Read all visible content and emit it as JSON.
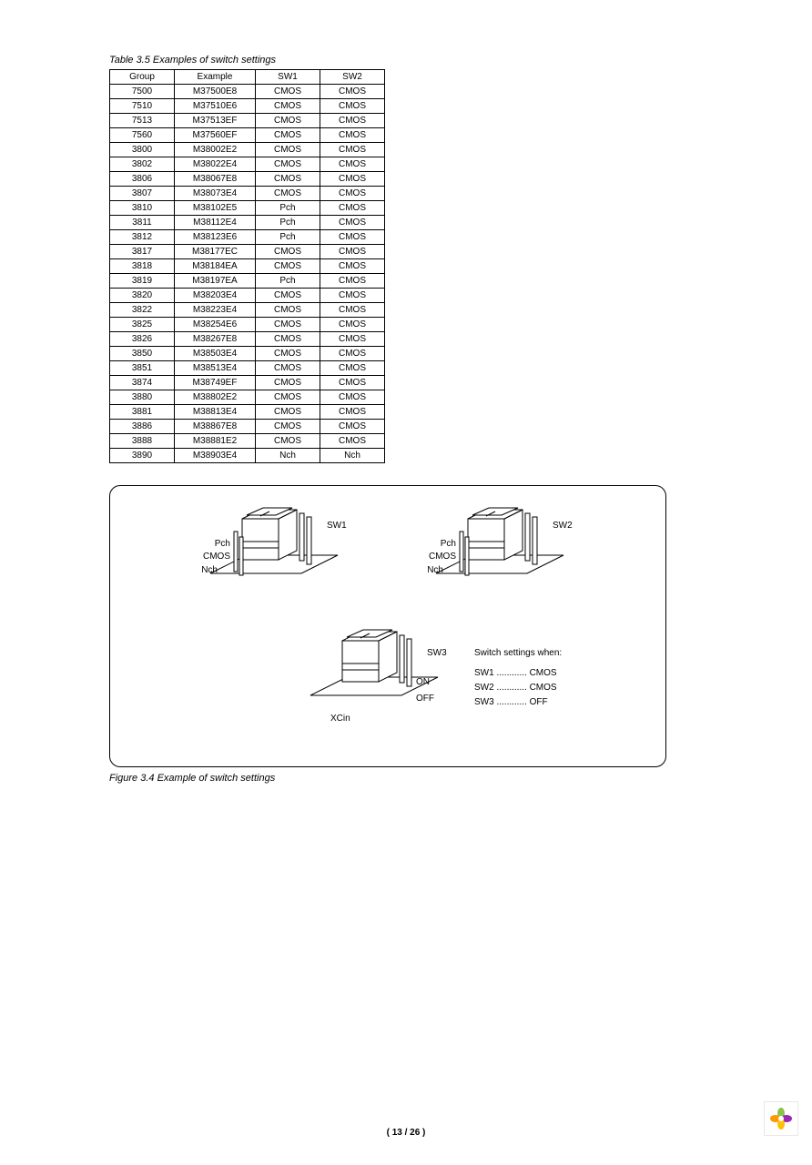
{
  "table_caption": "Table 3.5 Examples of switch settings",
  "figure_caption": "Figure 3.4 Example of switch settings",
  "page_number": "( 13 / 26 )",
  "columns": [
    "Group",
    "Example",
    "SW1",
    "SW2"
  ],
  "rows": [
    [
      "7500",
      "M37500E8",
      "CMOS",
      "CMOS"
    ],
    [
      "7510",
      "M37510E6",
      "CMOS",
      "CMOS"
    ],
    [
      "7513",
      "M37513EF",
      "CMOS",
      "CMOS"
    ],
    [
      "7560",
      "M37560EF",
      "CMOS",
      "CMOS"
    ],
    [
      "3800",
      "M38002E2",
      "CMOS",
      "CMOS"
    ],
    [
      "3802",
      "M38022E4",
      "CMOS",
      "CMOS"
    ],
    [
      "3806",
      "M38067E8",
      "CMOS",
      "CMOS"
    ],
    [
      "3807",
      "M38073E4",
      "CMOS",
      "CMOS"
    ],
    [
      "3810",
      "M38102E5",
      "Pch",
      "CMOS"
    ],
    [
      "3811",
      "M38112E4",
      "Pch",
      "CMOS"
    ],
    [
      "3812",
      "M38123E6",
      "Pch",
      "CMOS"
    ],
    [
      "3817",
      "M38177EC",
      "CMOS",
      "CMOS"
    ],
    [
      "3818",
      "M38184EA",
      "CMOS",
      "CMOS"
    ],
    [
      "3819",
      "M38197EA",
      "Pch",
      "CMOS"
    ],
    [
      "3820",
      "M38203E4",
      "CMOS",
      "CMOS"
    ],
    [
      "3822",
      "M38223E4",
      "CMOS",
      "CMOS"
    ],
    [
      "3825",
      "M38254E6",
      "CMOS",
      "CMOS"
    ],
    [
      "3826",
      "M38267E8",
      "CMOS",
      "CMOS"
    ],
    [
      "3850",
      "M38503E4",
      "CMOS",
      "CMOS"
    ],
    [
      "3851",
      "M38513E4",
      "CMOS",
      "CMOS"
    ],
    [
      "3874",
      "M38749EF",
      "CMOS",
      "CMOS"
    ],
    [
      "3880",
      "M38802E2",
      "CMOS",
      "CMOS"
    ],
    [
      "3881",
      "M38813E4",
      "CMOS",
      "CMOS"
    ],
    [
      "3886",
      "M38867E8",
      "CMOS",
      "CMOS"
    ],
    [
      "3888",
      "M38881E2",
      "CMOS",
      "CMOS"
    ],
    [
      "3890",
      "M38903E4",
      "Nch",
      "Nch"
    ]
  ],
  "diagram": {
    "sw1": {
      "name": "SW1",
      "positions": [
        "Pch",
        "CMOS",
        "Nch"
      ]
    },
    "sw2": {
      "name": "SW2",
      "positions": [
        "Pch",
        "CMOS",
        "Nch"
      ]
    },
    "sw3": {
      "name": "SW3",
      "positions": [
        "ON",
        "OFF"
      ],
      "footer": "XCin"
    },
    "legend_title": "Switch settings when:",
    "legend": [
      [
        "SW1",
        "CMOS"
      ],
      [
        "SW2",
        "CMOS"
      ],
      [
        "SW3",
        "OFF"
      ]
    ]
  },
  "style": {
    "stroke": "#000000",
    "fill": "#ffffff",
    "stroke_width": 1,
    "font_size_labels": 10,
    "font_size_caption": 11
  }
}
